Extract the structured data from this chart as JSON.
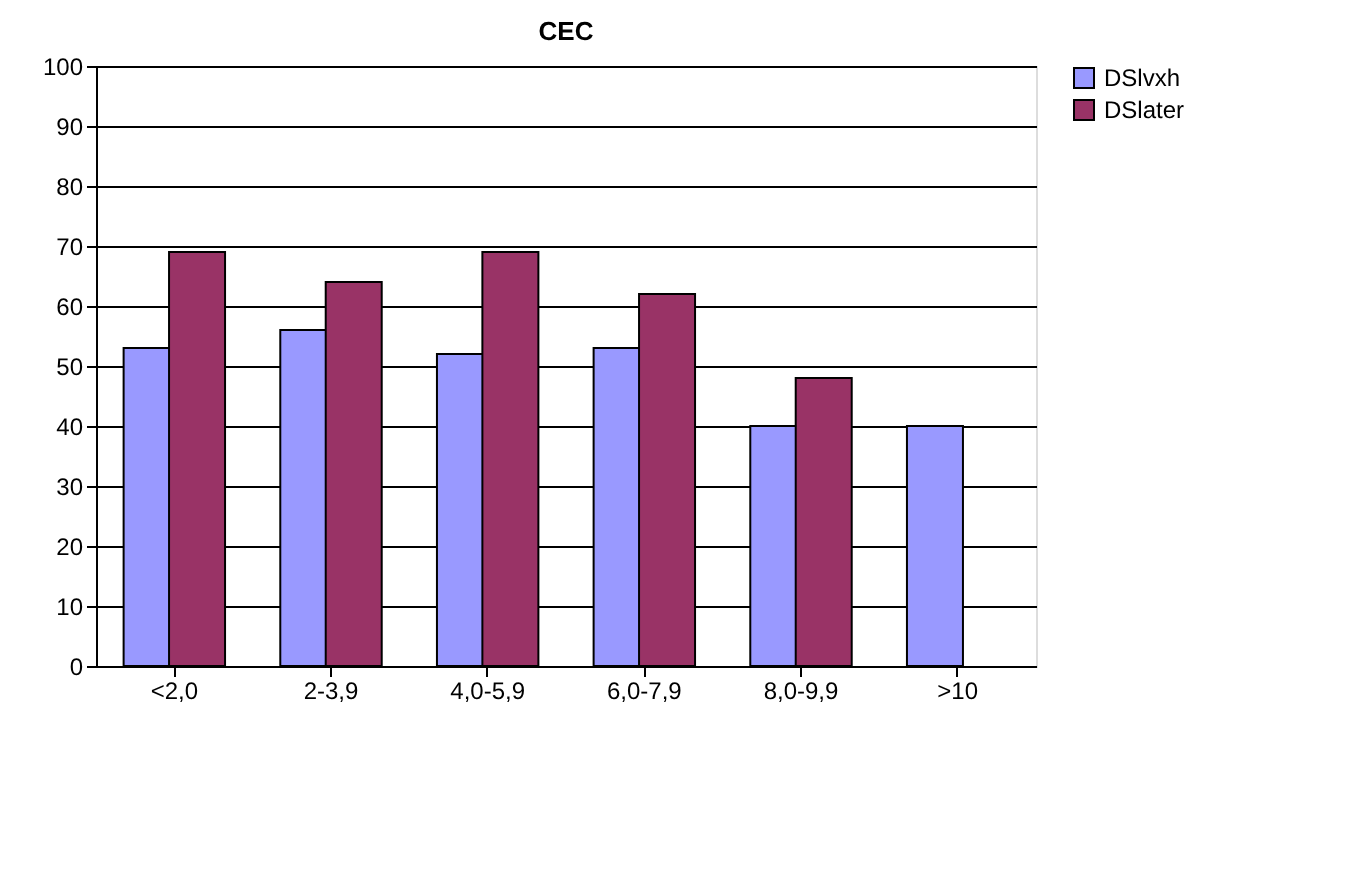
{
  "chart_data": {
    "type": "bar",
    "title": "CEC",
    "categories": [
      "<2,0",
      "2-3,9",
      "4,0-5,9",
      "6,0-7,9",
      "8,0-9,9",
      ">10"
    ],
    "series": [
      {
        "name": "DSlvxh",
        "color": "#9999ff",
        "values": [
          53,
          56,
          52,
          53,
          40,
          40
        ]
      },
      {
        "name": "DSlater",
        "color": "#993366",
        "values": [
          69,
          64,
          69,
          62,
          48,
          null
        ]
      }
    ],
    "ylim": [
      0,
      100
    ],
    "yticks": [
      0,
      10,
      20,
      30,
      40,
      50,
      60,
      70,
      80,
      90,
      100
    ],
    "grid": "y",
    "legend": "top right"
  }
}
